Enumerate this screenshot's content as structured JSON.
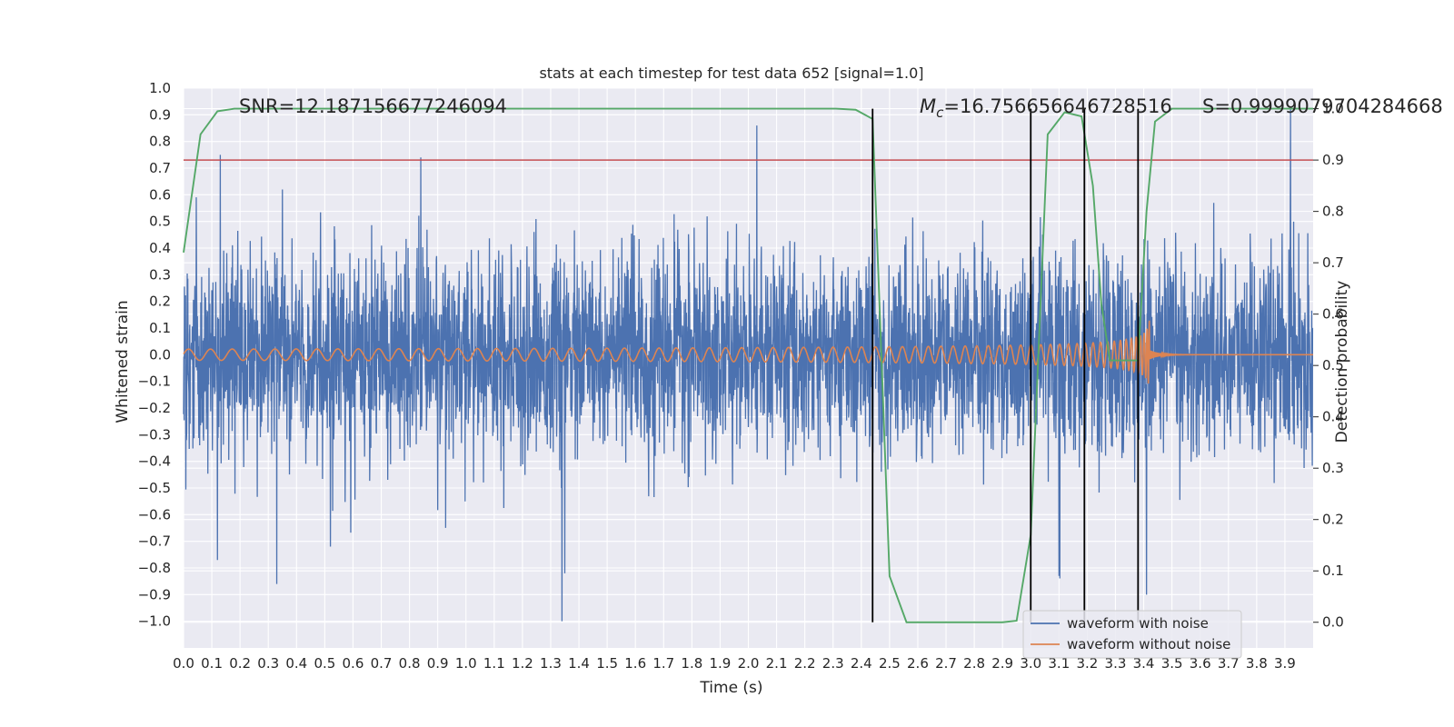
{
  "chart_data": {
    "type": "line",
    "title": "stats at each timestep for test data 652 [signal=1.0]",
    "xlabel": "Time (s)",
    "ylabel": "Whitened strain",
    "y2label": "Detection probability",
    "xlim": [
      0.0,
      4.0
    ],
    "ylim": [
      -1.1,
      1.0
    ],
    "y2lim": [
      -0.05,
      1.04
    ],
    "xticks": [
      "0.0",
      "0.1",
      "0.2",
      "0.3",
      "0.4",
      "0.5",
      "0.6",
      "0.7",
      "0.8",
      "0.9",
      "1.0",
      "1.1",
      "1.2",
      "1.3",
      "1.4",
      "1.5",
      "1.6",
      "1.7",
      "1.8",
      "1.9",
      "2.0",
      "2.1",
      "2.2",
      "2.3",
      "2.4",
      "2.5",
      "2.6",
      "2.7",
      "2.8",
      "2.9",
      "3.0",
      "3.1",
      "3.2",
      "3.3",
      "3.4",
      "3.5",
      "3.6",
      "3.7",
      "3.8",
      "3.9"
    ],
    "yticks": [
      "1.0",
      "0.9",
      "0.8",
      "0.7",
      "0.6",
      "0.5",
      "0.4",
      "0.3",
      "0.2",
      "0.1",
      "0.0",
      "−0.1",
      "−0.2",
      "−0.3",
      "−0.4",
      "−0.5",
      "−0.6",
      "−0.7",
      "−0.8",
      "−0.9",
      "−1.0"
    ],
    "y2ticks": [
      "1.0",
      "0.9",
      "0.8",
      "0.7",
      "0.6",
      "0.5",
      "0.4",
      "0.3",
      "0.2",
      "0.1",
      "0.0"
    ],
    "grid": true,
    "legend_position": "lower-right",
    "annotations": {
      "snr": "SNR=12.187156677246094",
      "mc_symbol": "M",
      "mc_sub": "c",
      "mc_value": "=16.756656646728516",
      "s": "S=0.9999079704284668"
    },
    "series": [
      {
        "name": "waveform with noise",
        "color": "#4c72b0",
        "axis": "left",
        "kind": "noise",
        "amplitude": 0.33,
        "samples": 4000,
        "peaks": [
          {
            "x": 0.13,
            "y": 0.75
          },
          {
            "x": 0.35,
            "y": 0.62
          },
          {
            "x": 0.84,
            "y": 0.74
          },
          {
            "x": 2.03,
            "y": 0.86
          },
          {
            "x": 3.92,
            "y": 0.92
          },
          {
            "x": 1.34,
            "y": -1.0
          },
          {
            "x": 0.33,
            "y": -0.86
          },
          {
            "x": 0.12,
            "y": -0.77
          },
          {
            "x": 0.52,
            "y": -0.72
          },
          {
            "x": 1.35,
            "y": -0.82
          },
          {
            "x": 3.41,
            "y": -0.9
          },
          {
            "x": 3.1,
            "y": -0.83
          }
        ]
      },
      {
        "name": "waveform without noise",
        "color": "#dd8452",
        "axis": "left",
        "kind": "chirp",
        "merger_time": 3.42
      },
      {
        "name": "",
        "color": "#55a868",
        "axis": "right",
        "kind": "probability",
        "x": [
          0.0,
          0.06,
          0.12,
          0.18,
          0.3,
          1.0,
          2.0,
          2.31,
          2.38,
          2.44,
          2.5,
          2.56,
          2.62,
          2.7,
          2.8,
          2.9,
          2.95,
          3.0,
          3.06,
          3.12,
          3.18,
          3.22,
          3.25,
          3.28,
          3.31,
          3.34,
          3.38,
          3.41,
          3.44,
          3.5,
          3.6,
          3.7,
          3.8,
          3.9,
          4.0
        ],
        "y": [
          0.72,
          0.95,
          0.995,
          1.0,
          1.0,
          1.0,
          1.0,
          1.0,
          0.998,
          0.98,
          0.09,
          0.0,
          0.0,
          0.0,
          0.0,
          0.0,
          0.003,
          0.17,
          0.95,
          0.993,
          0.985,
          0.85,
          0.62,
          0.51,
          0.51,
          0.51,
          0.51,
          0.8,
          0.975,
          1.0,
          1.0,
          1.0,
          1.0,
          1.0,
          1.0
        ]
      }
    ],
    "threshold": {
      "value": 0.9,
      "axis": "right",
      "color": "#c44e52"
    },
    "vlines": [
      2.44,
      3.0,
      3.19,
      3.38
    ],
    "vline_range_y2": [
      0.0,
      1.0
    ]
  }
}
